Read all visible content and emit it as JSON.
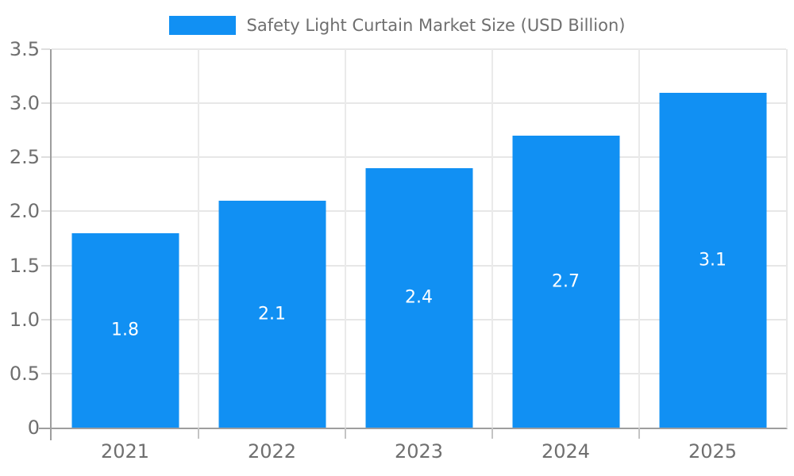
{
  "legend": {
    "label": "Safety Light Curtain Market Size (USD Billion)"
  },
  "chart_data": {
    "type": "bar",
    "title": "Safety Light Curtain Market Size (USD Billion)",
    "categories": [
      "2021",
      "2022",
      "2023",
      "2024",
      "2025"
    ],
    "values": [
      1.8,
      2.1,
      2.4,
      2.7,
      3.1
    ],
    "value_labels": [
      "1.8",
      "2.1",
      "2.4",
      "2.7",
      "3.1"
    ],
    "xlabel": "",
    "ylabel": "",
    "ylim": [
      0,
      3.5
    ],
    "ytick_step": 0.5,
    "ytick_labels": [
      "0",
      "0.5",
      "1.0",
      "1.5",
      "2.0",
      "2.5",
      "3.0",
      "3.5"
    ],
    "legend_position": "top",
    "grid": "on",
    "value_label_position": "inside-center",
    "colors": {
      "bar": "#1190F3",
      "grid": "#E7E7E7",
      "axis": "#9E9E9E",
      "tick": "#C4C4C4",
      "text": "#6F6F6F",
      "value_text": "#FFFFFF"
    }
  }
}
